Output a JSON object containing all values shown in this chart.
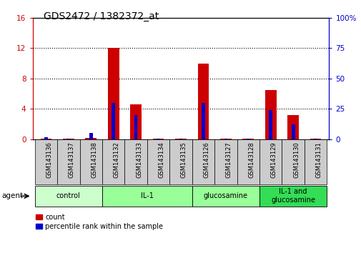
{
  "title": "GDS2472 / 1382372_at",
  "samples": [
    "GSM143136",
    "GSM143137",
    "GSM143138",
    "GSM143132",
    "GSM143133",
    "GSM143134",
    "GSM143135",
    "GSM143126",
    "GSM143127",
    "GSM143128",
    "GSM143129",
    "GSM143130",
    "GSM143131"
  ],
  "count_values": [
    0.05,
    0.05,
    0.15,
    12.0,
    4.6,
    0.05,
    0.05,
    10.0,
    0.05,
    0.05,
    6.5,
    3.2,
    0.05
  ],
  "percentile_values": [
    1.5,
    0.5,
    5.0,
    30.0,
    20.0,
    0.5,
    0.5,
    30.0,
    0.5,
    0.5,
    24.0,
    12.0,
    0.5
  ],
  "ylim_left": [
    0,
    16
  ],
  "ylim_right": [
    0,
    100
  ],
  "yticks_left": [
    0,
    4,
    8,
    12,
    16
  ],
  "ytick_labels_left": [
    "0",
    "4",
    "8",
    "12",
    "16"
  ],
  "yticks_right": [
    0,
    25,
    50,
    75,
    100
  ],
  "ytick_labels_right": [
    "0",
    "25",
    "50",
    "75",
    "100%"
  ],
  "groups": [
    {
      "label": "control",
      "start": 0,
      "end": 3,
      "color": "#ccffcc"
    },
    {
      "label": "IL-1",
      "start": 3,
      "end": 7,
      "color": "#99ff99"
    },
    {
      "label": "glucosamine",
      "start": 7,
      "end": 10,
      "color": "#99ff99"
    },
    {
      "label": "IL-1 and\nglucosamine",
      "start": 10,
      "end": 13,
      "color": "#33dd55"
    }
  ],
  "bar_color_red": "#cc0000",
  "bar_color_blue": "#0000cc",
  "left_axis_color": "#cc0000",
  "right_axis_color": "#0000cc",
  "bar_width": 0.5,
  "blue_bar_width": 0.15,
  "agent_label": "agent",
  "legend_count": "count",
  "legend_percentile": "percentile rank within the sample",
  "plot_bg": "#ffffff",
  "tick_box_color": "#cccccc"
}
